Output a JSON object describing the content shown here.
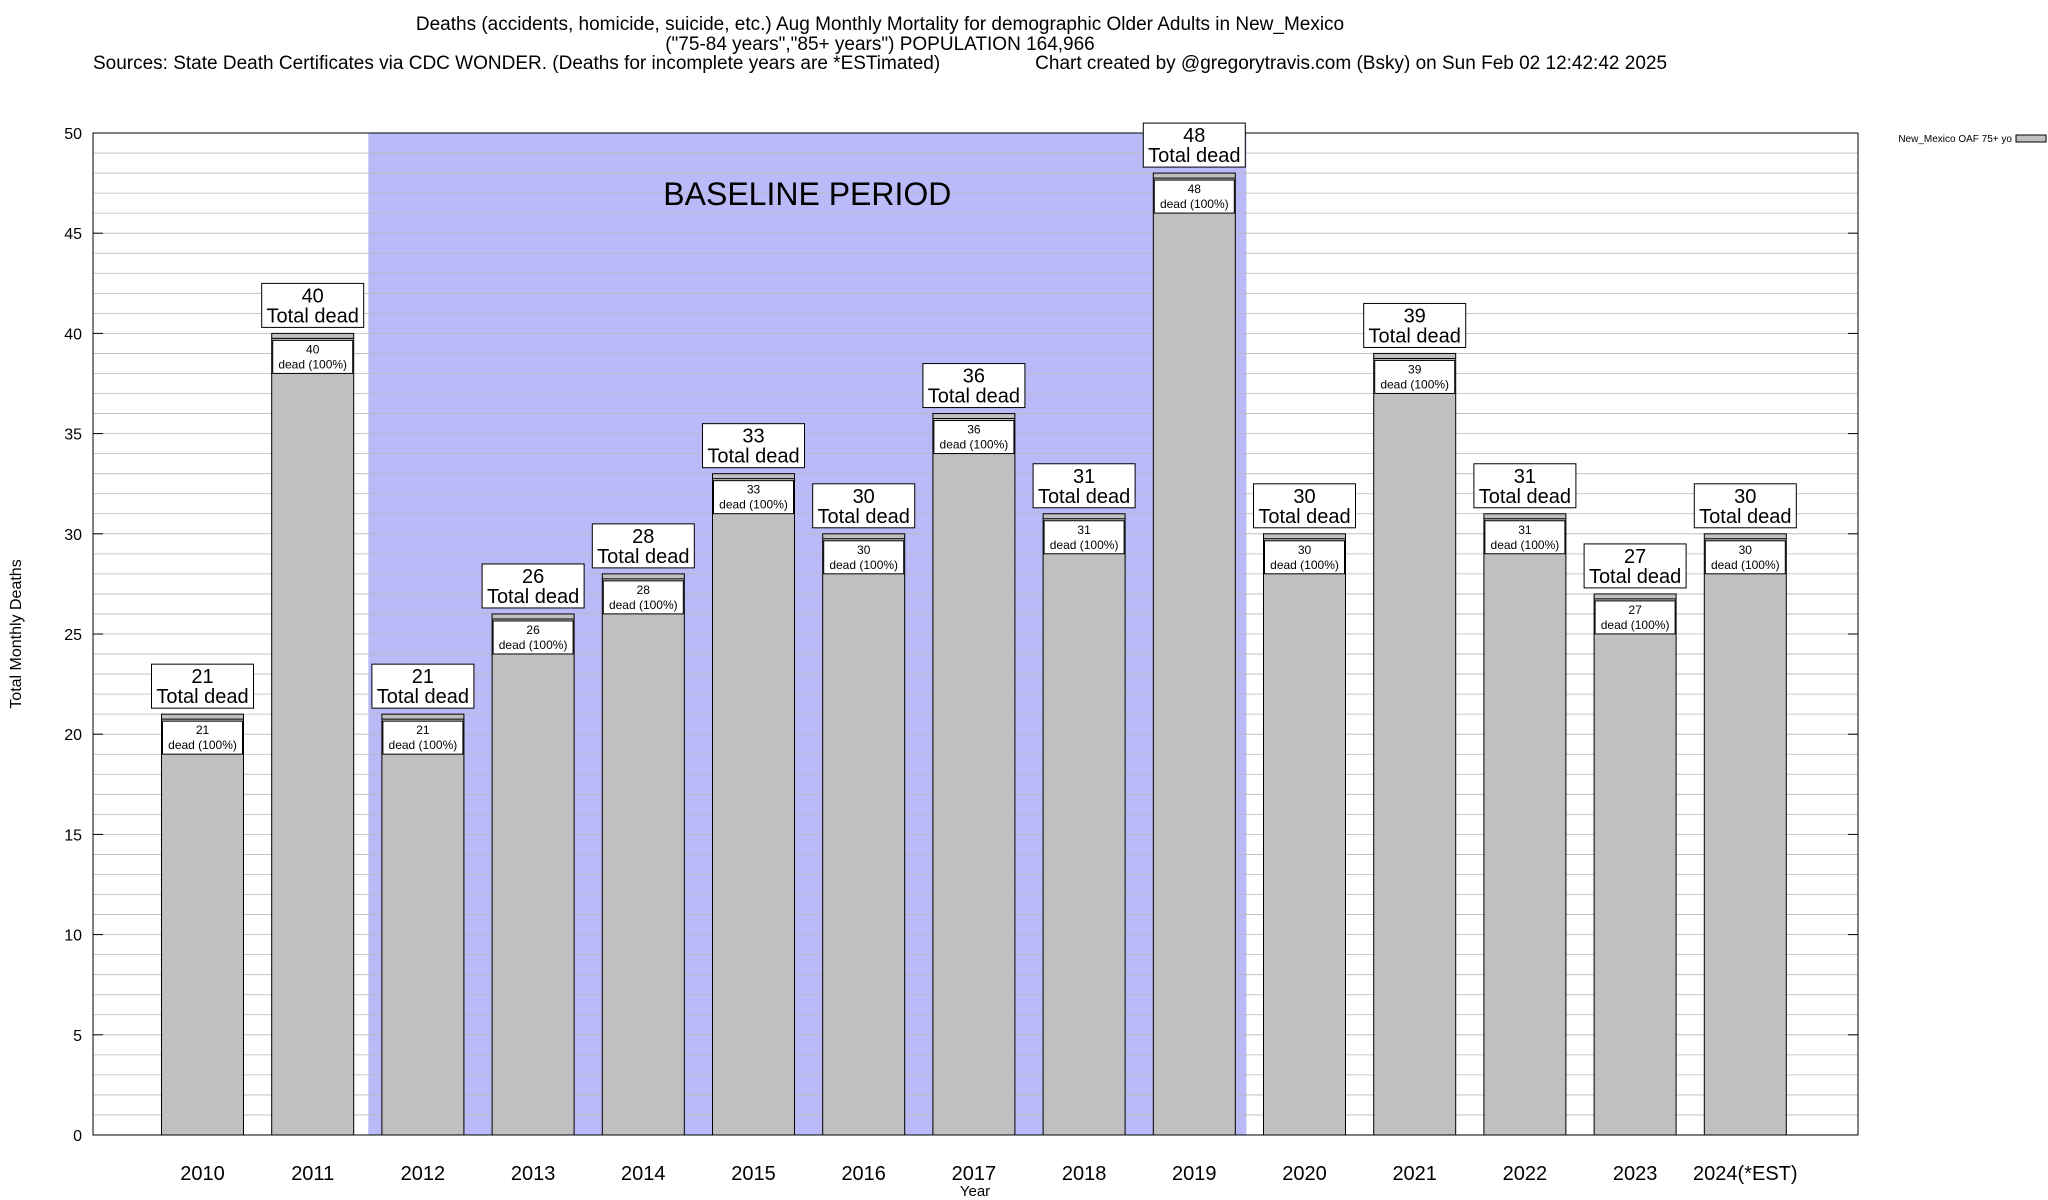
{
  "title_lines": [
    "Deaths (accidents, homicide, suicide, etc.) Aug Monthly Mortality for demographic Older Adults in New_Mexico",
    "(\"75-84 years\",\"85+ years\") POPULATION 164,966",
    "Sources: State Death Certificates via CDC WONDER. (Deaths for incomplete years are *ESTimated)                  Chart created by @gregorytravis.com (Bsky) on Sun Feb 02 12:42:42 2025"
  ],
  "chart_data": {
    "type": "bar",
    "title": "Deaths (accidents, homicide, suicide, etc.) Aug Monthly Mortality for demographic Older Adults in New_Mexico",
    "subtitle": "(\"75-84 years\",\"85+ years\") POPULATION 164,966",
    "xlabel": "Year",
    "ylabel": "Total Monthly Deaths",
    "ylim": [
      0,
      50
    ],
    "y_ticks": [
      0,
      5,
      10,
      15,
      20,
      25,
      30,
      35,
      40,
      45,
      50
    ],
    "grid": true,
    "categories": [
      "2010",
      "2011",
      "2012",
      "2013",
      "2014",
      "2015",
      "2016",
      "2017",
      "2018",
      "2019",
      "2020",
      "2021",
      "2022",
      "2023",
      "2024(*EST)"
    ],
    "series": [
      {
        "name": "New_Mexico OAF 75+ yo",
        "color": "#c0c0c0",
        "values": [
          21,
          40,
          21,
          26,
          28,
          33,
          30,
          36,
          31,
          48,
          30,
          39,
          31,
          27,
          30
        ]
      }
    ],
    "total_label_suffix": "Total dead",
    "inner_label_suffix": "dead (100%)",
    "baseline_period": {
      "label": "BASELINE PERIOD",
      "start": "2012",
      "end": "2019",
      "color": "#babaf8"
    },
    "legend": {
      "position": "top-right",
      "entries": [
        "New_Mexico OAF 75+ yo"
      ]
    }
  }
}
